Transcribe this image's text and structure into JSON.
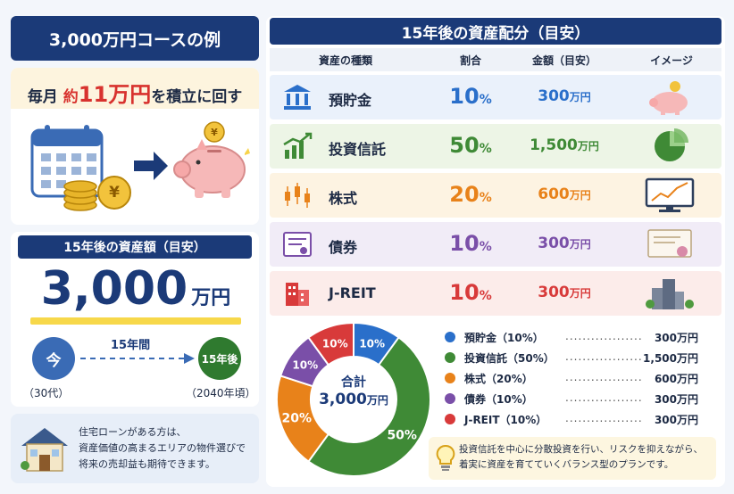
{
  "left": {
    "course_title": "3,000万円コースの例",
    "monthly": {
      "prefix": "毎月",
      "yaku": "約",
      "amount": "11万円",
      "suffix": "を積立に回す",
      "coin_symbol": "¥"
    },
    "total_title": "15年後の資産額（目安）",
    "total_amount": "3,000",
    "total_unit": "万円",
    "now_label": "今",
    "now_sub": "（30代）",
    "span_label": "15年間",
    "after_label": "15年後",
    "after_sub": "（2040年頃）",
    "note": [
      "住宅ローンがある方は、",
      "資産価値の高まるエリアの物件選びで",
      "将来の売却益も期待できます。"
    ]
  },
  "right": {
    "title": "15年後の資産配分（目安）",
    "headers": [
      "資産の種類",
      "割合",
      "金額（目安）",
      "イメージ"
    ],
    "rows": [
      {
        "name": "預貯金",
        "pct": "10",
        "amount": "300",
        "color": "#2a6fca",
        "bg": "#eaf1fb",
        "icon": "bank-icon",
        "image": "piggy-bank-icon"
      },
      {
        "name": "投資信託",
        "pct": "50",
        "amount": "1,500",
        "color": "#3f8a36",
        "bg": "#edf5e6",
        "icon": "growth-chart-icon",
        "image": "pie-chart-icon"
      },
      {
        "name": "株式",
        "pct": "20",
        "amount": "600",
        "color": "#e8821a",
        "bg": "#fdf3e2",
        "icon": "candlestick-icon",
        "image": "monitor-chart-icon"
      },
      {
        "name": "債券",
        "pct": "10",
        "amount": "300",
        "color": "#7a4fa8",
        "bg": "#f1ecf7",
        "icon": "bond-certificate-icon",
        "image": "certificate-icon"
      },
      {
        "name": "J-REIT",
        "pct": "10",
        "amount": "300",
        "color": "#d83a3a",
        "bg": "#fcecea",
        "icon": "building-icon",
        "image": "city-buildings-icon"
      }
    ],
    "pct_unit": "%",
    "amount_unit": "万円",
    "donut": {
      "center_label": "合計",
      "center_amount": "3,000",
      "center_unit": "万円"
    },
    "legend": [
      {
        "label": "預貯金（10%）",
        "amount": "300万円"
      },
      {
        "label": "投資信託（50%）",
        "amount": "1,500万円"
      },
      {
        "label": "株式（20%）",
        "amount": "600万円"
      },
      {
        "label": "債券（10%）",
        "amount": "300万円"
      },
      {
        "label": "J-REIT（10%）",
        "amount": "300万円"
      }
    ],
    "tip": [
      "投資信託を中心に分散投資を行い、リスクを抑えながら、",
      "着実に資産を育てていくバランス型のプランです。"
    ]
  },
  "chart_data": {
    "type": "pie",
    "categories": [
      "預貯金",
      "投資信託",
      "株式",
      "債券",
      "J-REIT"
    ],
    "values": [
      10,
      50,
      20,
      10,
      10
    ],
    "colors": [
      "#2a6fca",
      "#3f8a36",
      "#e8821a",
      "#7a4fa8",
      "#d83a3a"
    ],
    "slice_labels": [
      "10%",
      "50%",
      "20%",
      "10%",
      "10%"
    ]
  }
}
